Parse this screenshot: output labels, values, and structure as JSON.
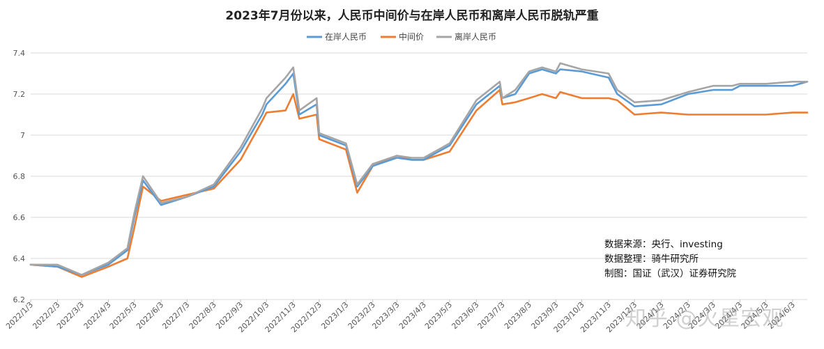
{
  "chart_data": {
    "type": "line",
    "title": "2023年7月份以来，人民币中间价与在岸人民币和离岸人民币脱轨严重",
    "xlabel": "",
    "ylabel": "",
    "ylim": [
      6.2,
      7.4
    ],
    "yticks": [
      "6.2",
      "6.4",
      "6.6",
      "6.8",
      "7",
      "7.2",
      "7.4"
    ],
    "grid": "horizontal",
    "legend_position": "top-center",
    "x_tick_labels": [
      "2022/1/3",
      "2022/2/3",
      "2022/3/3",
      "2022/4/3",
      "2022/5/3",
      "2022/6/3",
      "2022/7/3",
      "2022/8/3",
      "2022/9/3",
      "2022/10/3",
      "2022/11/3",
      "2022/12/3",
      "2023/1/3",
      "2023/2/3",
      "2023/3/3",
      "2023/4/3",
      "2023/5/3",
      "2023/6/3",
      "2023/7/3",
      "2023/8/3",
      "2023/9/3",
      "2023/10/3",
      "2023/11/3",
      "2023/12/3",
      "2024/1/3",
      "2024/2/3",
      "2024/3/3",
      "2024/4/3",
      "2024/5/3",
      "2024/6/3"
    ],
    "x": [
      "2022/1/3",
      "2022/2/3",
      "2022/3/3",
      "2022/4/3",
      "2022/4/25",
      "2022/5/3",
      "2022/5/13",
      "2022/6/3",
      "2022/7/3",
      "2022/8/3",
      "2022/9/3",
      "2022/9/28",
      "2022/10/3",
      "2022/10/25",
      "2022/11/3",
      "2022/11/10",
      "2022/11/30",
      "2022/12/3",
      "2023/1/3",
      "2023/1/16",
      "2023/2/3",
      "2023/3/3",
      "2023/3/20",
      "2023/4/3",
      "2023/5/3",
      "2023/6/3",
      "2023/6/30",
      "2023/7/3",
      "2023/7/18",
      "2023/8/3",
      "2023/8/18",
      "2023/9/3",
      "2023/9/8",
      "2023/10/3",
      "2023/11/3",
      "2023/11/13",
      "2023/12/3",
      "2024/1/3",
      "2024/2/3",
      "2024/3/3",
      "2024/3/25",
      "2024/4/3",
      "2024/5/3",
      "2024/6/3",
      "2024/6/20"
    ],
    "series": [
      {
        "name": "在岸人民币",
        "color": "#5b9bd5",
        "values": [
          6.37,
          6.36,
          6.32,
          6.37,
          6.44,
          6.6,
          6.78,
          6.66,
          6.7,
          6.75,
          6.92,
          7.1,
          7.15,
          7.25,
          7.3,
          7.1,
          7.15,
          7.0,
          6.95,
          6.75,
          6.85,
          6.89,
          6.88,
          6.88,
          6.95,
          7.15,
          7.24,
          7.18,
          7.2,
          7.3,
          7.32,
          7.3,
          7.32,
          7.31,
          7.28,
          7.2,
          7.14,
          7.15,
          7.2,
          7.22,
          7.22,
          7.24,
          7.24,
          7.24,
          7.26
        ]
      },
      {
        "name": "中间价",
        "color": "#ed7d31",
        "values": [
          6.37,
          6.36,
          6.31,
          6.36,
          6.4,
          6.55,
          6.75,
          6.68,
          6.71,
          6.74,
          6.88,
          7.07,
          7.11,
          7.12,
          7.2,
          7.08,
          7.1,
          6.98,
          6.93,
          6.72,
          6.85,
          6.9,
          6.88,
          6.88,
          6.92,
          7.12,
          7.22,
          7.15,
          7.16,
          7.18,
          7.2,
          7.18,
          7.21,
          7.18,
          7.18,
          7.17,
          7.1,
          7.11,
          7.1,
          7.1,
          7.1,
          7.1,
          7.1,
          7.11,
          7.11
        ]
      },
      {
        "name": "离岸人民币",
        "color": "#a5a5a5",
        "values": [
          6.37,
          6.37,
          6.32,
          6.38,
          6.45,
          6.62,
          6.8,
          6.67,
          6.7,
          6.76,
          6.94,
          7.13,
          7.18,
          7.28,
          7.33,
          7.12,
          7.18,
          7.01,
          6.96,
          6.76,
          6.86,
          6.9,
          6.89,
          6.89,
          6.96,
          7.17,
          7.26,
          7.18,
          7.22,
          7.31,
          7.33,
          7.31,
          7.35,
          7.32,
          7.3,
          7.22,
          7.16,
          7.17,
          7.21,
          7.24,
          7.24,
          7.25,
          7.25,
          7.26,
          7.26
        ]
      }
    ]
  },
  "annotations": {
    "source": "数据来源：央行、investing",
    "compiler": "数据整理：骑牛研究所",
    "maker": "制图：国证（武汉）证券研究院"
  },
  "watermark": "知乎 @火星宏观"
}
